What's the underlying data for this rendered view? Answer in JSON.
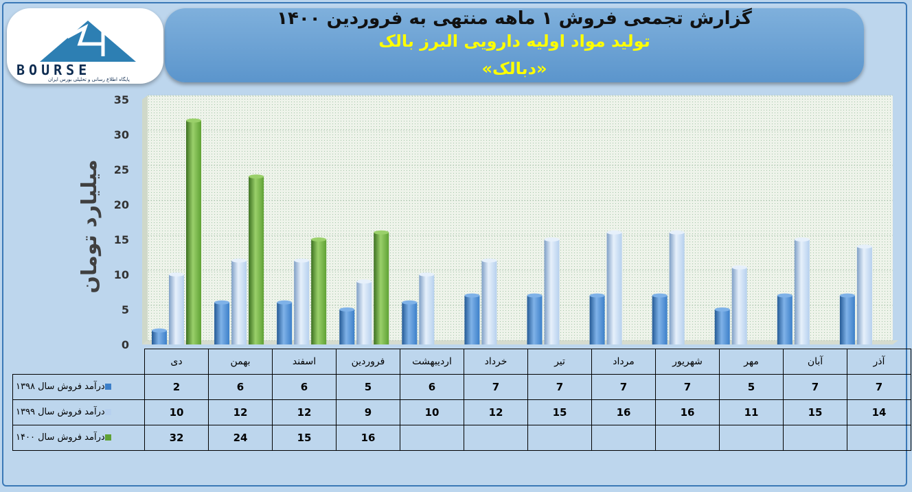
{
  "header": {
    "title": "گزارش تجمعی فروش ۱ ماهه منتهی به فروردین ۱۴۰۰",
    "subtitle": "تولید مواد اولیه دارویی البرز بالک",
    "symbol": "«دبالک»"
  },
  "logo": {
    "text": "BOURSE",
    "subtext": "پایگاه اطلاع رسانی و تحلیلی بورس ایران"
  },
  "colors": {
    "s1398": "#3c7fc9",
    "s1399": "#b6d0ee",
    "s1400": "#5fa134",
    "header": "#6da3d6",
    "title_accent": "#ffff00"
  },
  "chart_data": {
    "type": "bar",
    "ylabel": "میلیارد تومان",
    "ylim": [
      0,
      35
    ],
    "yticks": [
      0,
      5,
      10,
      15,
      20,
      25,
      30,
      35
    ],
    "categories": [
      "دی",
      "بهمن",
      "اسفند",
      "فروردین",
      "اردیبهشت",
      "خرداد",
      "تیر",
      "مرداد",
      "شهریور",
      "مهر",
      "آبان",
      "آذر"
    ],
    "series": [
      {
        "name": "درآمد فروش سال ۱۳۹۸",
        "values": [
          2,
          6,
          6,
          5,
          6,
          7,
          7,
          7,
          7,
          5,
          7,
          7
        ]
      },
      {
        "name": "درآمد فروش سال ۱۳۹۹",
        "values": [
          10,
          12,
          12,
          9,
          10,
          12,
          15,
          16,
          16,
          11,
          15,
          14
        ]
      },
      {
        "name": "درآمد فروش سال ۱۴۰۰",
        "values": [
          32,
          24,
          15,
          16,
          null,
          null,
          null,
          null,
          null,
          null,
          null,
          null
        ]
      }
    ]
  }
}
